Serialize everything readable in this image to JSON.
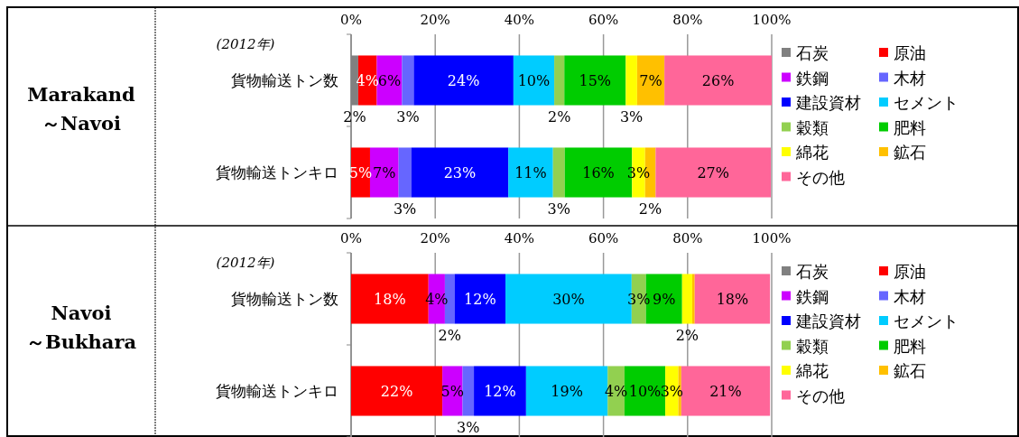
{
  "chart_data": [
    {
      "type": "bar",
      "orientation": "horizontal",
      "stacked": true,
      "title": "Marakand\n～Navoi",
      "subtitle": "(2012年)",
      "legend": "right",
      "categories": [
        "貨物輸送トン数",
        "貨物輸送トンキロ"
      ],
      "xlim": [
        0,
        100
      ],
      "xticks": [
        {
          "value": 0,
          "label": "0%"
        },
        {
          "value": 20,
          "label": "20%"
        },
        {
          "value": 40,
          "label": "40%"
        },
        {
          "value": 60,
          "label": "60%"
        },
        {
          "value": 80,
          "label": "80%"
        },
        {
          "value": 100,
          "label": "100%"
        }
      ],
      "grid": "x",
      "series": [
        {
          "name": "石炭",
          "color": "#808080",
          "values": [
            1.7,
            0
          ],
          "value_labels": [
            "2%",
            null
          ]
        },
        {
          "name": "原油",
          "color": "#ff0000",
          "values": [
            4.4,
            4.5
          ],
          "value_labels": [
            "4%",
            "5%"
          ]
        },
        {
          "name": "鉄鋼",
          "color": "#cc00ff",
          "values": [
            6.0,
            6.8
          ],
          "value_labels": [
            "6%",
            "7%"
          ]
        },
        {
          "name": "木材",
          "color": "#6666ff",
          "values": [
            2.8,
            3.0
          ],
          "value_labels": [
            "3%",
            "3%"
          ]
        },
        {
          "name": "建設資材",
          "color": "#0000ff",
          "values": [
            23.7,
            23.1
          ],
          "value_labels": [
            "24%",
            "23%"
          ]
        },
        {
          "name": "セメント",
          "color": "#00ccff",
          "values": [
            9.7,
            10.6
          ],
          "value_labels": [
            "10%",
            "11%"
          ]
        },
        {
          "name": "穀類",
          "color": "#92d050",
          "values": [
            2.4,
            2.8
          ],
          "value_labels": [
            "2%",
            "3%"
          ]
        },
        {
          "name": "肥料",
          "color": "#00cc00",
          "values": [
            14.6,
            16.0
          ],
          "value_labels": [
            "15%",
            "16%"
          ]
        },
        {
          "name": "綿花",
          "color": "#ffff00",
          "values": [
            2.7,
            3.1
          ],
          "value_labels": [
            "3%",
            "3%"
          ]
        },
        {
          "name": "鉱石",
          "color": "#ffc000",
          "values": [
            6.5,
            2.5
          ],
          "value_labels": [
            "7%",
            "2%"
          ]
        },
        {
          "name": "その他",
          "color": "#ff6699",
          "values": [
            25.5,
            27.4
          ],
          "value_labels": [
            "26%",
            "27%"
          ]
        }
      ]
    },
    {
      "type": "bar",
      "orientation": "horizontal",
      "stacked": true,
      "title": "Navoi\n～Bukhara",
      "subtitle": "(2012年)",
      "legend": "right",
      "categories": [
        "貨物輸送トン数",
        "貨物輸送トンキロ"
      ],
      "xlim": [
        0,
        100
      ],
      "xticks": [
        {
          "value": 0,
          "label": "0%"
        },
        {
          "value": 20,
          "label": "20%"
        },
        {
          "value": 40,
          "label": "40%"
        },
        {
          "value": 60,
          "label": "60%"
        },
        {
          "value": 80,
          "label": "80%"
        },
        {
          "value": 100,
          "label": "100%"
        }
      ],
      "grid": "x",
      "series": [
        {
          "name": "石炭",
          "color": "#808080",
          "values": [
            0,
            0
          ],
          "value_labels": [
            null,
            null
          ]
        },
        {
          "name": "原油",
          "color": "#ff0000",
          "values": [
            18.4,
            21.7
          ],
          "value_labels": [
            "18%",
            "22%"
          ]
        },
        {
          "name": "鉄鋼",
          "color": "#cc00ff",
          "values": [
            3.9,
            4.8
          ],
          "value_labels": [
            "4%",
            "5%"
          ]
        },
        {
          "name": "木材",
          "color": "#6666ff",
          "values": [
            2.3,
            2.7
          ],
          "value_labels": [
            "2%",
            "3%"
          ]
        },
        {
          "name": "建設資材",
          "color": "#0000ff",
          "values": [
            12.1,
            12.4
          ],
          "value_labels": [
            "12%",
            "12%"
          ]
        },
        {
          "name": "セメント",
          "color": "#00ccff",
          "values": [
            30.0,
            19.4
          ],
          "value_labels": [
            "30%",
            "19%"
          ]
        },
        {
          "name": "穀類",
          "color": "#92d050",
          "values": [
            3.4,
            4.0
          ],
          "value_labels": [
            "3%",
            "4%"
          ]
        },
        {
          "name": "肥料",
          "color": "#00cc00",
          "values": [
            8.6,
            9.7
          ],
          "value_labels": [
            "9%",
            "10%"
          ]
        },
        {
          "name": "綿花",
          "color": "#ffff00",
          "values": [
            2.4,
            3.1
          ],
          "value_labels": [
            "2%",
            "3%"
          ]
        },
        {
          "name": "鉱石",
          "color": "#ffc000",
          "values": [
            0.6,
            0.7
          ],
          "value_labels": [
            null,
            null
          ]
        },
        {
          "name": "その他",
          "color": "#ff6699",
          "values": [
            17.9,
            21.1
          ],
          "value_labels": [
            "18%",
            "21%"
          ]
        }
      ]
    }
  ]
}
